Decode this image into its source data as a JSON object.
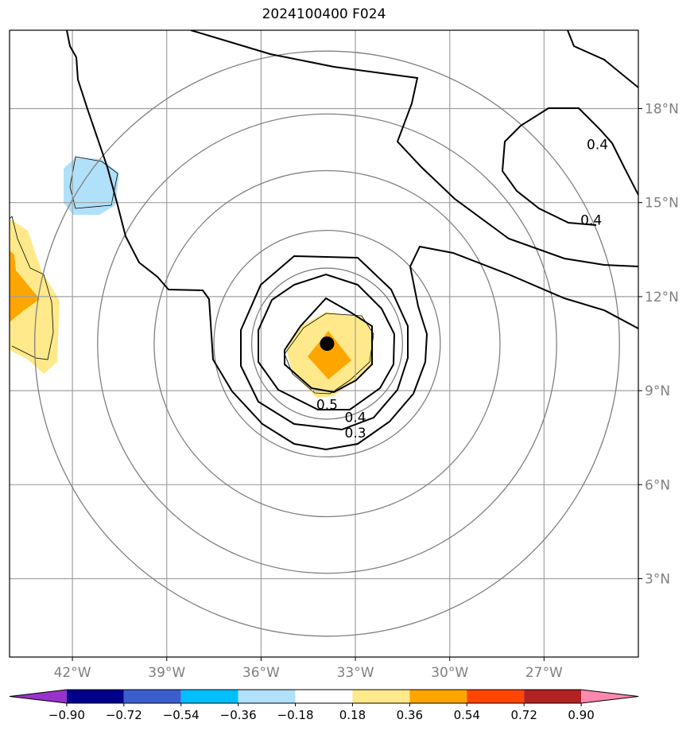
{
  "title": "2024100400 F024",
  "map": {
    "lon_range": [
      -44.0,
      -24.0
    ],
    "lat_range": [
      0.5,
      20.5
    ],
    "lat_labels": [
      {
        "lat": 18,
        "text": "18°N"
      },
      {
        "lat": 15,
        "text": "15°N"
      },
      {
        "lat": 12,
        "text": "12°N"
      },
      {
        "lat": 9,
        "text": "9°N"
      },
      {
        "lat": 6,
        "text": "6°N"
      },
      {
        "lat": 3,
        "text": "3°N"
      }
    ],
    "lon_labels": [
      {
        "lon": -42,
        "text": "42°W"
      },
      {
        "lon": -39,
        "text": "39°W"
      },
      {
        "lon": -36,
        "text": "36°W"
      },
      {
        "lon": -33,
        "text": "33°W"
      },
      {
        "lon": -30,
        "text": "30°W"
      },
      {
        "lon": -27,
        "text": "27°W"
      }
    ],
    "range_rings_deg": [
      2.4,
      3.6,
      5.5,
      7.3,
      9.3
    ],
    "storm_center": {
      "lon": -33.9,
      "lat": 10.5
    },
    "contour_labels": [
      {
        "text": "0.5",
        "lon": -33.9,
        "lat": 8.4
      },
      {
        "text": "0.4",
        "lon": -33.0,
        "lat": 8.0
      },
      {
        "text": "0.3",
        "lon": -33.0,
        "lat": 7.5
      },
      {
        "text": "0.4",
        "lon": -25.5,
        "lat": 14.3
      },
      {
        "text": "0.4",
        "lon": -25.3,
        "lat": 16.7
      }
    ]
  },
  "colorbar": {
    "colors": [
      "#9932cc",
      "#00008b",
      "#3a5fcd",
      "#00bfff",
      "#b0e0fa",
      "#ffffff",
      "#ffe98a",
      "#ffa500",
      "#ff4500",
      "#b22222",
      "#ff88b0"
    ],
    "tick_labels": [
      "−0.90",
      "−0.72",
      "−0.54",
      "−0.36",
      "−0.18",
      "0.18",
      "0.36",
      "0.54",
      "0.72",
      "0.90"
    ]
  },
  "colors": {
    "grid": "#a0a0a0",
    "rings": "#808080",
    "labels": "#808080",
    "contour": "#000000",
    "fill_light_yellow": "#ffe98a",
    "fill_orange": "#ffa500",
    "fill_light_blue": "#b0e0fa"
  }
}
